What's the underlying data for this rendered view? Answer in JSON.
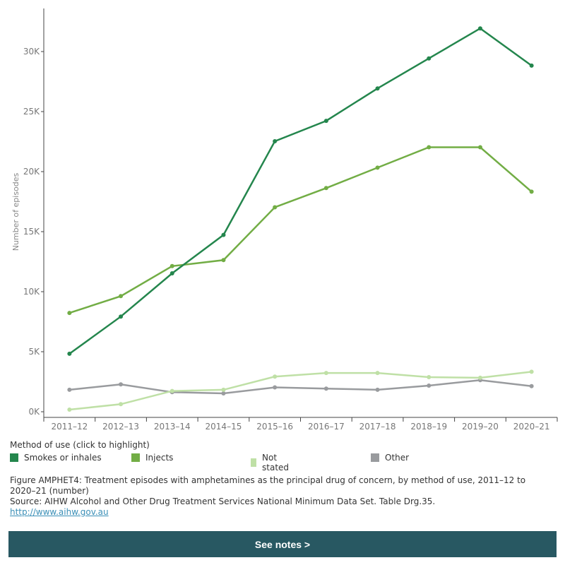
{
  "chart_data": {
    "type": "line",
    "ylabel": "Number of episodes",
    "xlabel": "",
    "categories": [
      "2011–12",
      "2012–13",
      "2013–14",
      "2014–15",
      "2015–16",
      "2016–17",
      "2017–18",
      "2018–19",
      "2019–20",
      "2020–21"
    ],
    "ylim": [
      0,
      33000
    ],
    "yticks": [
      0,
      5000,
      10000,
      15000,
      20000,
      25000,
      30000
    ],
    "ytick_labels": [
      "0K",
      "5K",
      "10K",
      "15K",
      "20K",
      "25K",
      "30K"
    ],
    "grid": false,
    "legend_placement": "bottom",
    "series": [
      {
        "name": "Smokes or inhales",
        "color": "#24864d",
        "values": [
          5300,
          8400,
          12000,
          15200,
          23000,
          24700,
          27400,
          29900,
          32400,
          29300
        ]
      },
      {
        "name": "Injects",
        "color": "#72ad45",
        "values": [
          8700,
          10100,
          12600,
          13100,
          17500,
          19100,
          20800,
          22500,
          22500,
          18800
        ]
      },
      {
        "name": "Not stated",
        "color": "#bfe0a6",
        "values": [
          650,
          1100,
          2200,
          2300,
          3400,
          3700,
          3700,
          3350,
          3300,
          3800
        ]
      },
      {
        "name": "Other",
        "color": "#999b9e",
        "values": [
          2300,
          2750,
          2100,
          2000,
          2500,
          2400,
          2300,
          2650,
          3100,
          2600
        ]
      }
    ]
  },
  "legend": {
    "title": "Method of use (click to highlight)"
  },
  "caption": {
    "figure": "Figure AMPHET4: Treatment episodes with amphetamines as the principal drug of concern, by method of use, 2011–12 to 2020–21 (number)",
    "source": "Source: AIHW Alcohol and Other Drug Treatment Services National Minimum Data Set. Table Drg.35.",
    "link": "http://www.aihw.gov.au"
  },
  "button": {
    "label": "See notes >"
  }
}
